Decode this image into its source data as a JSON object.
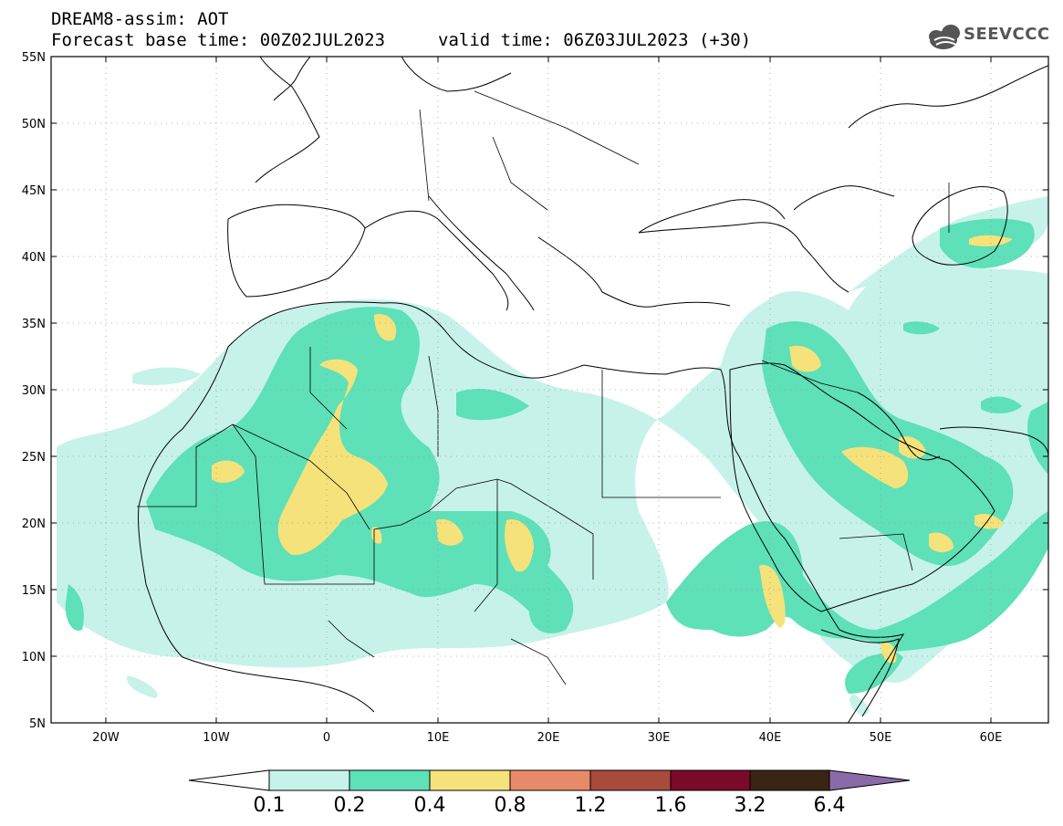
{
  "header": {
    "line1": "DREAM8-assim: AOT",
    "line2": "Forecast base time: 00Z02JUL2023",
    "valid": "valid time: 06Z03JUL2023 (+30)",
    "logo_text": "SEEVCCC"
  },
  "map": {
    "lat_labels": [
      "55N",
      "50N",
      "45N",
      "40N",
      "35N",
      "30N",
      "25N",
      "20N",
      "15N",
      "10N",
      "5N"
    ],
    "lon_labels": [
      "20W",
      "10W",
      "0",
      "10E",
      "20E",
      "30E",
      "40E",
      "50E",
      "60E"
    ],
    "lon_range": [
      -25,
      65
    ],
    "lat_range": [
      5,
      55
    ]
  },
  "colorbar": {
    "labels": [
      "0.1",
      "0.2",
      "0.4",
      "0.8",
      "1.2",
      "1.6",
      "3.2",
      "6.4"
    ],
    "colors": [
      "#ffffff",
      "#c6f2ea",
      "#5ee0b8",
      "#f5e27a",
      "#e88a6a",
      "#a84a3c",
      "#7a0a2a",
      "#3a2414",
      "#8a6aa8"
    ]
  }
}
